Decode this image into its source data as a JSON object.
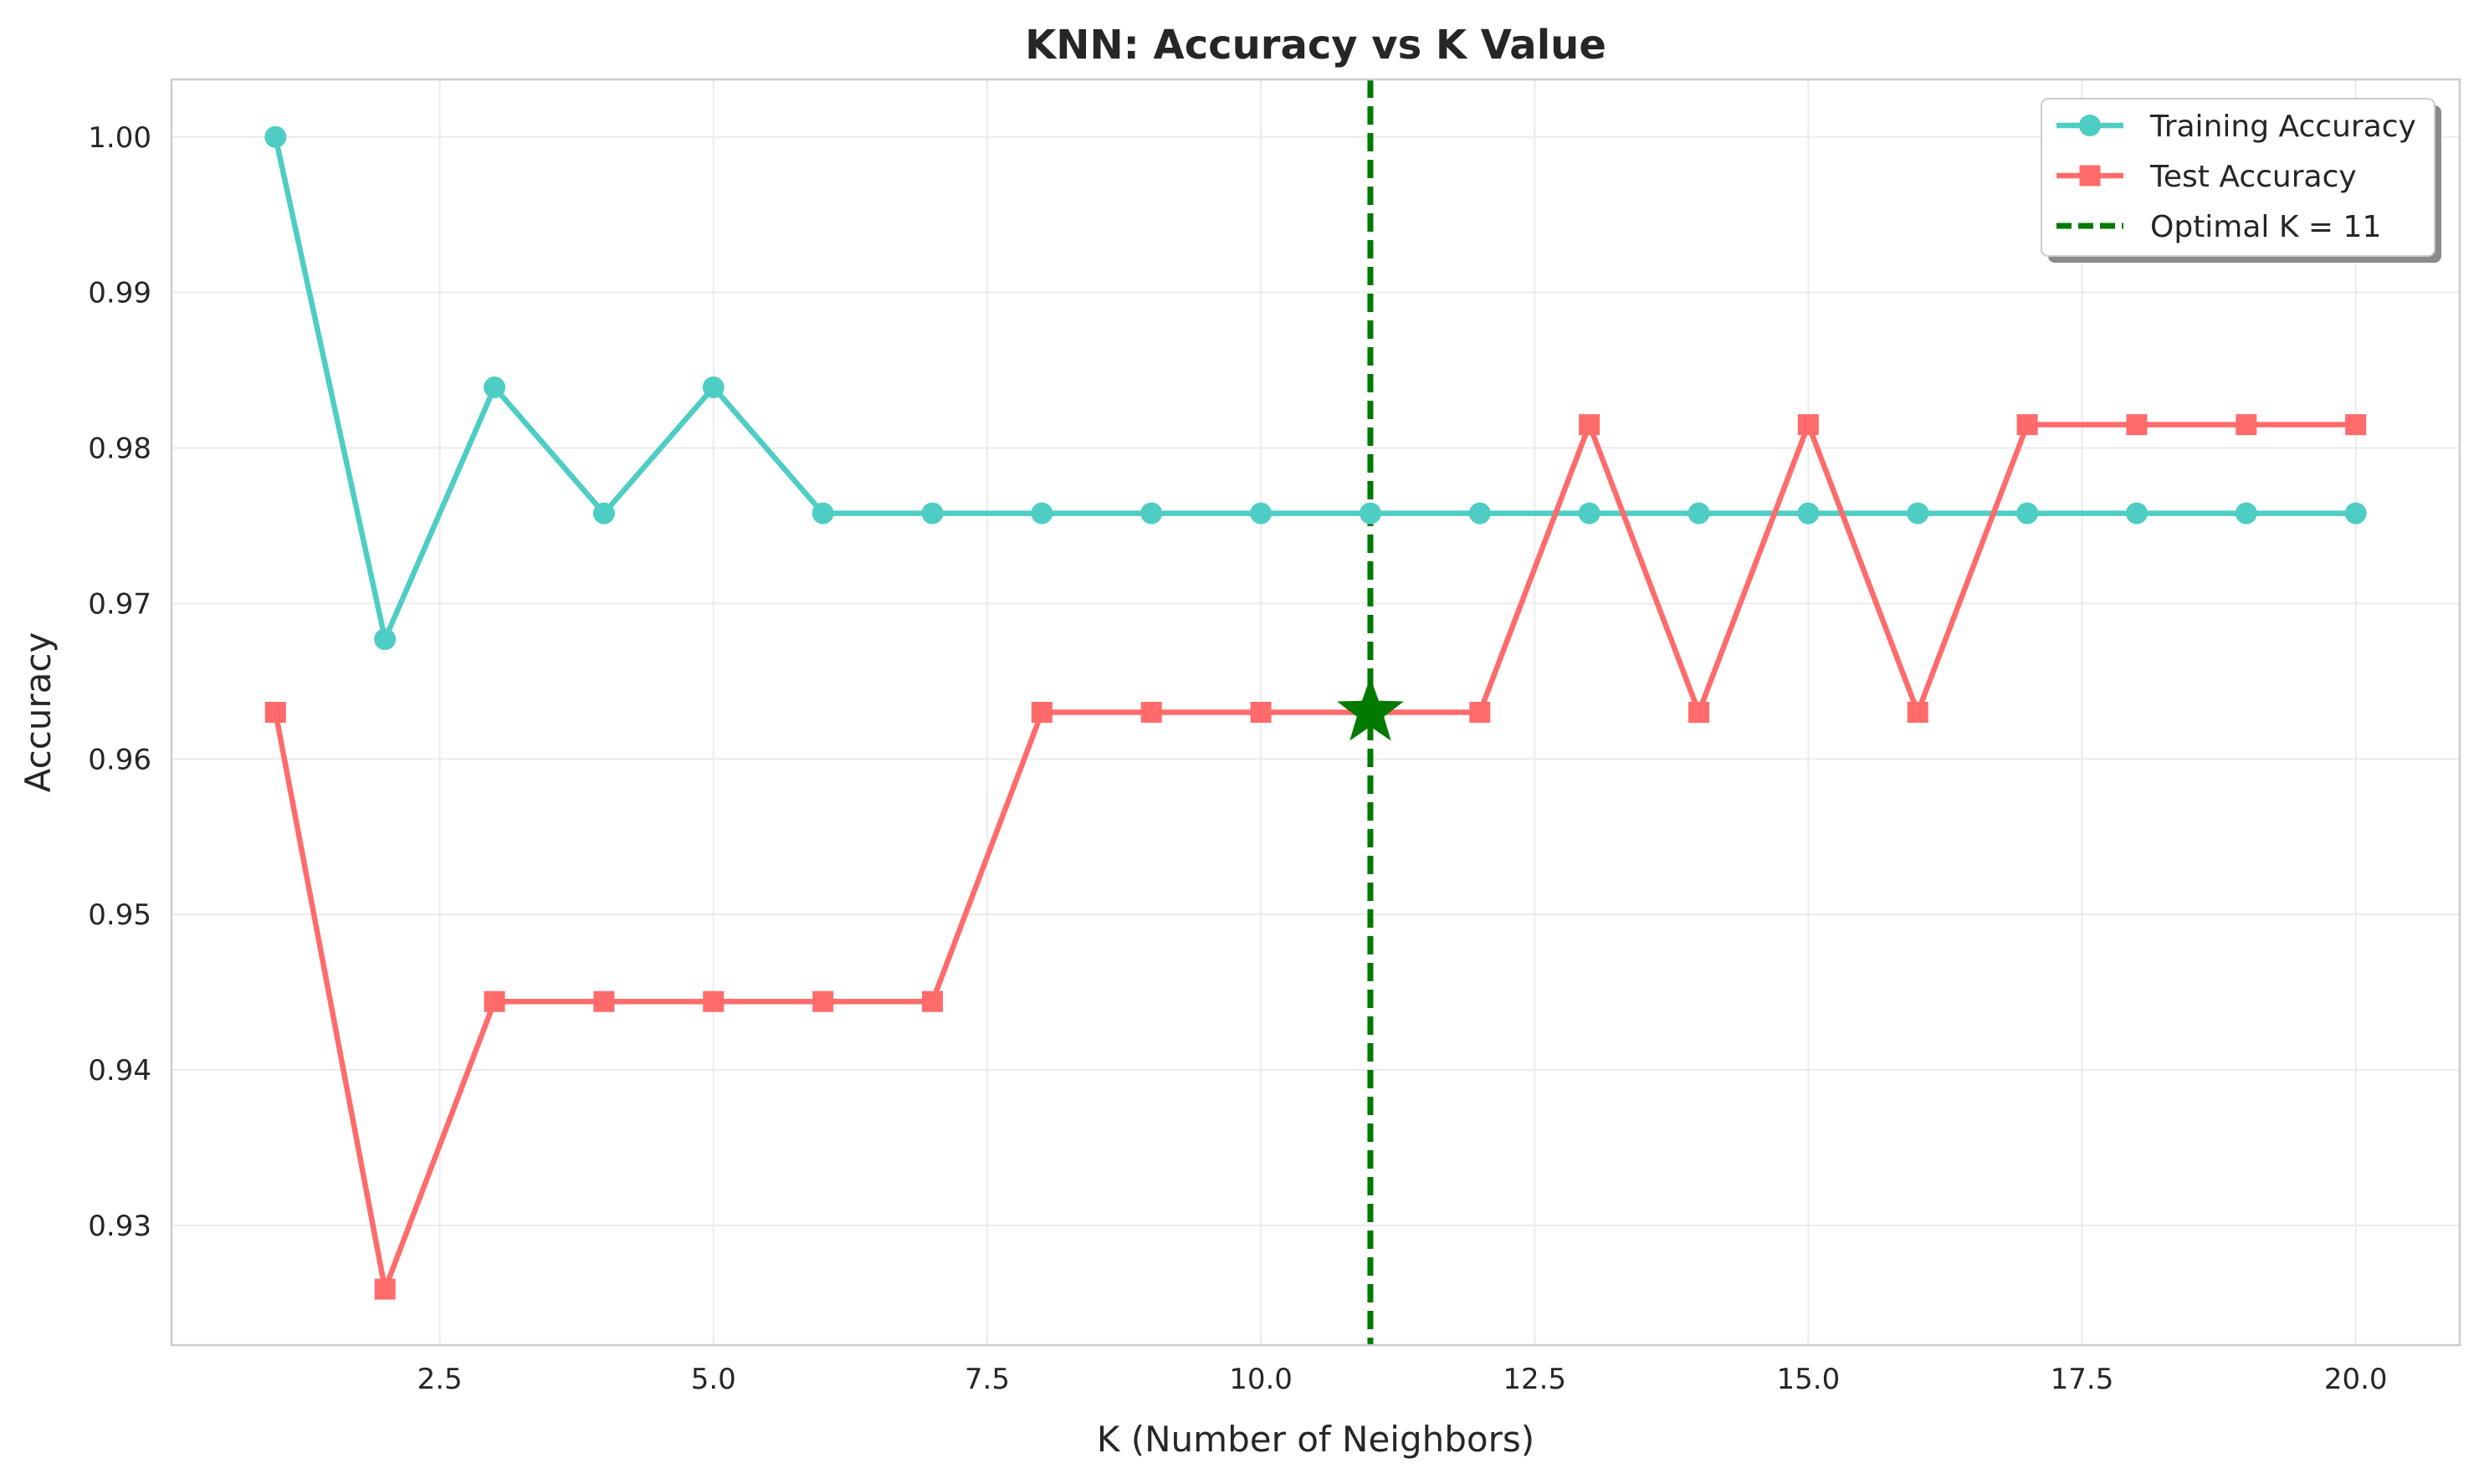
{
  "chart_data": {
    "type": "line",
    "title": "KNN: Accuracy vs K Value",
    "xlabel": "K (Number of Neighbors)",
    "ylabel": "Accuracy",
    "xlim": [
      0.05,
      20.95
    ],
    "ylim": [
      0.9223,
      1.0037
    ],
    "xticks": [
      2.5,
      5.0,
      7.5,
      10.0,
      12.5,
      15.0,
      17.5,
      20.0
    ],
    "xtick_labels": [
      "2.5",
      "5.0",
      "7.5",
      "10.0",
      "12.5",
      "15.0",
      "17.5",
      "20.0"
    ],
    "yticks": [
      0.93,
      0.94,
      0.95,
      0.96,
      0.97,
      0.98,
      0.99,
      1.0
    ],
    "ytick_labels": [
      "0.93",
      "0.94",
      "0.95",
      "0.96",
      "0.97",
      "0.98",
      "0.99",
      "1.00"
    ],
    "grid": true,
    "legend_position": "top-right",
    "x": [
      1,
      2,
      3,
      4,
      5,
      6,
      7,
      8,
      9,
      10,
      11,
      12,
      13,
      14,
      15,
      16,
      17,
      18,
      19,
      20
    ],
    "series": [
      {
        "name": "Training Accuracy",
        "color": "#4ecdc4",
        "marker": "circle",
        "values": [
          1.0,
          0.9677,
          0.9839,
          0.9758,
          0.9839,
          0.9758,
          0.9758,
          0.9758,
          0.9758,
          0.9758,
          0.9758,
          0.9758,
          0.9758,
          0.9758,
          0.9758,
          0.9758,
          0.9758,
          0.9758,
          0.9758,
          0.9758
        ]
      },
      {
        "name": "Test Accuracy",
        "color": "#ff6b6b",
        "marker": "square",
        "values": [
          0.963,
          0.9259,
          0.9444,
          0.9444,
          0.9444,
          0.9444,
          0.9444,
          0.963,
          0.963,
          0.963,
          0.963,
          0.963,
          0.9815,
          0.963,
          0.9815,
          0.963,
          0.9815,
          0.9815,
          0.9815,
          0.9815
        ]
      }
    ],
    "optimal": {
      "name": "Optimal K = 11",
      "k": 11,
      "accuracy": 0.963,
      "color": "#007a00",
      "line_style": "dashed",
      "marker": "star"
    }
  }
}
